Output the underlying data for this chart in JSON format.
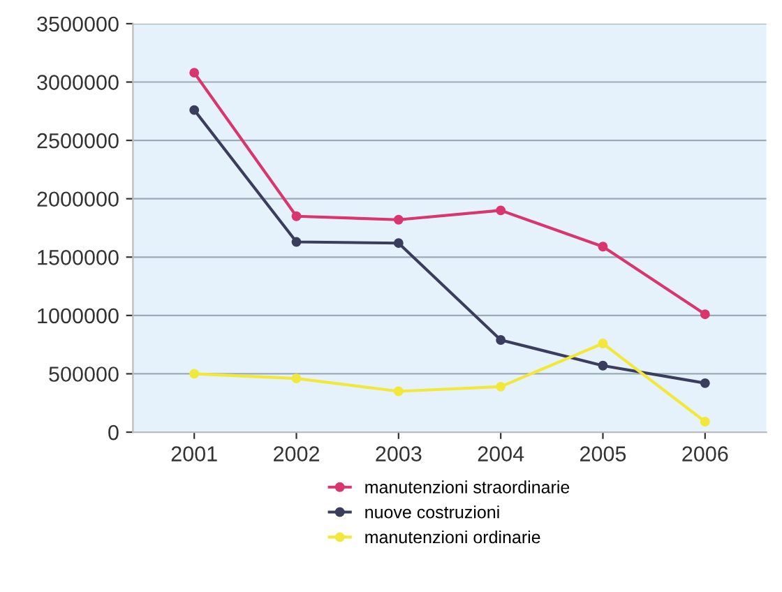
{
  "chart_data": {
    "type": "line",
    "categories": [
      "2001",
      "2002",
      "2003",
      "2004",
      "2005",
      "2006"
    ],
    "series": [
      {
        "name": "manutenzioni straordinarie",
        "color": "#d9356f",
        "values": [
          3080000,
          1850000,
          1820000,
          1900000,
          1590000,
          1010000
        ]
      },
      {
        "name": "nuove costruzioni",
        "color": "#3a3d5c",
        "values": [
          2760000,
          1630000,
          1620000,
          790000,
          570000,
          420000
        ]
      },
      {
        "name": "manutenzioni ordinarie",
        "color": "#f2e83a",
        "values": [
          500000,
          460000,
          350000,
          390000,
          760000,
          90000
        ]
      }
    ],
    "ylim": [
      0,
      3500000
    ],
    "yticks": [
      0,
      500000,
      1000000,
      1500000,
      2000000,
      2500000,
      3000000,
      3500000
    ],
    "grid": "y",
    "legend": "bottom",
    "marker": "circle",
    "line_style": "solid"
  }
}
